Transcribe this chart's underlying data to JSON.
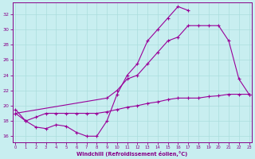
{
  "xlabel": "Windchill (Refroidissement éolien,°C)",
  "bg_color": "#c8eef0",
  "grid_color": "#aadddd",
  "line_color": "#990099",
  "xlim": [
    -0.3,
    23.3
  ],
  "ylim": [
    15.2,
    33.5
  ],
  "xtick_vals": [
    0,
    1,
    2,
    3,
    4,
    5,
    6,
    7,
    8,
    9,
    10,
    11,
    12,
    13,
    14,
    15,
    16,
    17,
    18,
    19,
    20,
    21,
    22,
    23
  ],
  "ytick_vals": [
    16,
    18,
    20,
    22,
    24,
    26,
    28,
    30,
    32
  ],
  "line1_x": [
    0,
    1,
    2,
    3,
    4,
    5,
    6,
    7,
    8,
    9,
    10,
    11,
    12,
    13,
    14,
    15,
    16,
    17
  ],
  "line1_y": [
    19.5,
    18.0,
    17.2,
    17.0,
    17.5,
    17.3,
    16.5,
    16.0,
    16.0,
    18.0,
    21.5,
    24.0,
    25.5,
    28.5,
    30.0,
    31.5,
    33.0,
    32.5
  ],
  "line2_x": [
    0,
    1,
    2,
    3,
    4,
    5,
    6,
    7,
    8,
    9,
    10,
    11,
    12,
    13,
    14,
    15,
    16,
    17,
    18,
    19,
    20,
    21,
    22,
    23
  ],
  "line2_y": [
    19.0,
    18.0,
    18.5,
    19.0,
    19.0,
    19.0,
    19.0,
    19.0,
    19.0,
    19.2,
    19.5,
    19.8,
    20.0,
    20.3,
    20.5,
    20.8,
    21.0,
    21.0,
    21.0,
    21.2,
    21.3,
    21.5,
    21.5,
    21.5
  ],
  "line3_x": [
    0,
    9,
    10,
    11,
    12,
    13,
    14,
    15,
    16,
    17,
    18,
    19,
    20,
    21,
    22,
    23
  ],
  "line3_y": [
    19.0,
    21.0,
    22.0,
    23.5,
    24.0,
    25.5,
    27.0,
    28.5,
    29.0,
    30.5,
    30.5,
    30.5,
    30.5,
    28.5,
    23.5,
    21.5
  ]
}
